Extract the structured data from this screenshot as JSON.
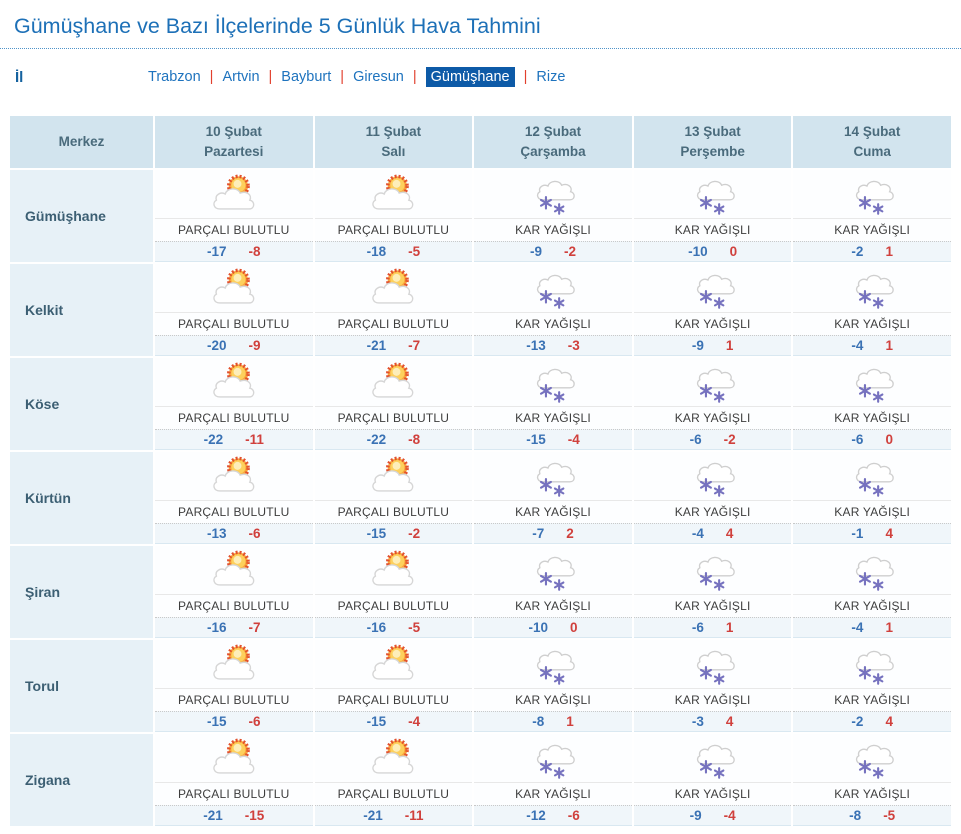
{
  "page": {
    "title": "Gümüşhane ve Bazı İlçelerinde 5 Günlük Hava Tahmini",
    "province_label": "İl"
  },
  "tabs": {
    "separator": "|",
    "items": [
      {
        "label": "Trabzon",
        "slug": "trabzon",
        "active": false
      },
      {
        "label": "Artvin",
        "slug": "artvin",
        "active": false
      },
      {
        "label": "Bayburt",
        "slug": "bayburt",
        "active": false
      },
      {
        "label": "Giresun",
        "slug": "giresun",
        "active": false
      },
      {
        "label": "Gümüşhane",
        "slug": "gumushane",
        "active": true
      },
      {
        "label": "Rize",
        "slug": "rize",
        "active": false
      }
    ]
  },
  "table": {
    "merkez_header": "Merkez",
    "day_headers": [
      {
        "date": "10 Şubat",
        "day": "Pazartesi"
      },
      {
        "date": "11 Şubat",
        "day": "Salı"
      },
      {
        "date": "12 Şubat",
        "day": "Çarşamba"
      },
      {
        "date": "13 Şubat",
        "day": "Perşembe"
      },
      {
        "date": "14 Şubat",
        "day": "Cuma"
      }
    ],
    "rows": [
      {
        "name": "Gümüşhane",
        "slug": "gumushane",
        "days": [
          {
            "icon": "partly-cloudy",
            "condition": "PARÇALI BULUTLU",
            "min": "-17",
            "max": "-8"
          },
          {
            "icon": "partly-cloudy",
            "condition": "PARÇALI BULUTLU",
            "min": "-18",
            "max": "-5"
          },
          {
            "icon": "snowy",
            "condition": "KAR YAĞIŞLI",
            "min": "-9",
            "max": "-2"
          },
          {
            "icon": "snowy",
            "condition": "KAR YAĞIŞLI",
            "min": "-10",
            "max": "0"
          },
          {
            "icon": "snowy",
            "condition": "KAR YAĞIŞLI",
            "min": "-2",
            "max": "1"
          }
        ]
      },
      {
        "name": "Kelkit",
        "slug": "kelkit",
        "days": [
          {
            "icon": "partly-cloudy",
            "condition": "PARÇALI BULUTLU",
            "min": "-20",
            "max": "-9"
          },
          {
            "icon": "partly-cloudy",
            "condition": "PARÇALI BULUTLU",
            "min": "-21",
            "max": "-7"
          },
          {
            "icon": "snowy",
            "condition": "KAR YAĞIŞLI",
            "min": "-13",
            "max": "-3"
          },
          {
            "icon": "snowy",
            "condition": "KAR YAĞIŞLI",
            "min": "-9",
            "max": "1"
          },
          {
            "icon": "snowy",
            "condition": "KAR YAĞIŞLI",
            "min": "-4",
            "max": "1"
          }
        ]
      },
      {
        "name": "Köse",
        "slug": "kose",
        "days": [
          {
            "icon": "partly-cloudy",
            "condition": "PARÇALI BULUTLU",
            "min": "-22",
            "max": "-11"
          },
          {
            "icon": "partly-cloudy",
            "condition": "PARÇALI BULUTLU",
            "min": "-22",
            "max": "-8"
          },
          {
            "icon": "snowy",
            "condition": "KAR YAĞIŞLI",
            "min": "-15",
            "max": "-4"
          },
          {
            "icon": "snowy",
            "condition": "KAR YAĞIŞLI",
            "min": "-6",
            "max": "-2"
          },
          {
            "icon": "snowy",
            "condition": "KAR YAĞIŞLI",
            "min": "-6",
            "max": "0"
          }
        ]
      },
      {
        "name": "Kürtün",
        "slug": "kurtun",
        "days": [
          {
            "icon": "partly-cloudy",
            "condition": "PARÇALI BULUTLU",
            "min": "-13",
            "max": "-6"
          },
          {
            "icon": "partly-cloudy",
            "condition": "PARÇALI BULUTLU",
            "min": "-15",
            "max": "-2"
          },
          {
            "icon": "snowy",
            "condition": "KAR YAĞIŞLI",
            "min": "-7",
            "max": "2"
          },
          {
            "icon": "snowy",
            "condition": "KAR YAĞIŞLI",
            "min": "-4",
            "max": "4"
          },
          {
            "icon": "snowy",
            "condition": "KAR YAĞIŞLI",
            "min": "-1",
            "max": "4"
          }
        ]
      },
      {
        "name": "Şiran",
        "slug": "siran",
        "days": [
          {
            "icon": "partly-cloudy",
            "condition": "PARÇALI BULUTLU",
            "min": "-16",
            "max": "-7"
          },
          {
            "icon": "partly-cloudy",
            "condition": "PARÇALI BULUTLU",
            "min": "-16",
            "max": "-5"
          },
          {
            "icon": "snowy",
            "condition": "KAR YAĞIŞLI",
            "min": "-10",
            "max": "0"
          },
          {
            "icon": "snowy",
            "condition": "KAR YAĞIŞLI",
            "min": "-6",
            "max": "1"
          },
          {
            "icon": "snowy",
            "condition": "KAR YAĞIŞLI",
            "min": "-4",
            "max": "1"
          }
        ]
      },
      {
        "name": "Torul",
        "slug": "torul",
        "days": [
          {
            "icon": "partly-cloudy",
            "condition": "PARÇALI BULUTLU",
            "min": "-15",
            "max": "-6"
          },
          {
            "icon": "partly-cloudy",
            "condition": "PARÇALI BULUTLU",
            "min": "-15",
            "max": "-4"
          },
          {
            "icon": "snowy",
            "condition": "KAR YAĞIŞLI",
            "min": "-8",
            "max": "1"
          },
          {
            "icon": "snowy",
            "condition": "KAR YAĞIŞLI",
            "min": "-3",
            "max": "4"
          },
          {
            "icon": "snowy",
            "condition": "KAR YAĞIŞLI",
            "min": "-2",
            "max": "4"
          }
        ]
      },
      {
        "name": "Zigana",
        "slug": "zigana",
        "days": [
          {
            "icon": "partly-cloudy",
            "condition": "PARÇALI BULUTLU",
            "min": "-21",
            "max": "-15"
          },
          {
            "icon": "partly-cloudy",
            "condition": "PARÇALI BULUTLU",
            "min": "-21",
            "max": "-11"
          },
          {
            "icon": "snowy",
            "condition": "KAR YAĞIŞLI",
            "min": "-12",
            "max": "-6"
          },
          {
            "icon": "snowy",
            "condition": "KAR YAĞIŞLI",
            "min": "-9",
            "max": "-4"
          },
          {
            "icon": "snowy",
            "condition": "KAR YAĞIŞLI",
            "min": "-8",
            "max": "-5"
          }
        ]
      }
    ]
  },
  "colors": {
    "title_blue": "#1d70b7",
    "link_blue": "#1e73be",
    "active_tab_bg": "#0d5aa7",
    "tab_separator_red": "#e2402e",
    "header_bg": "#d2e4ee",
    "header_text": "#4a6b7c",
    "city_cell_bg": "#e7f1f7",
    "city_text": "#3c5f73",
    "temp_row_bg": "#f0f6fa",
    "min_temp_blue": "#3a72b4",
    "max_temp_red": "#d0403c",
    "condition_text": "#3d3d3d",
    "snowflake_purple": "#7672bf",
    "sun_ray_orange": "#e2512d"
  }
}
